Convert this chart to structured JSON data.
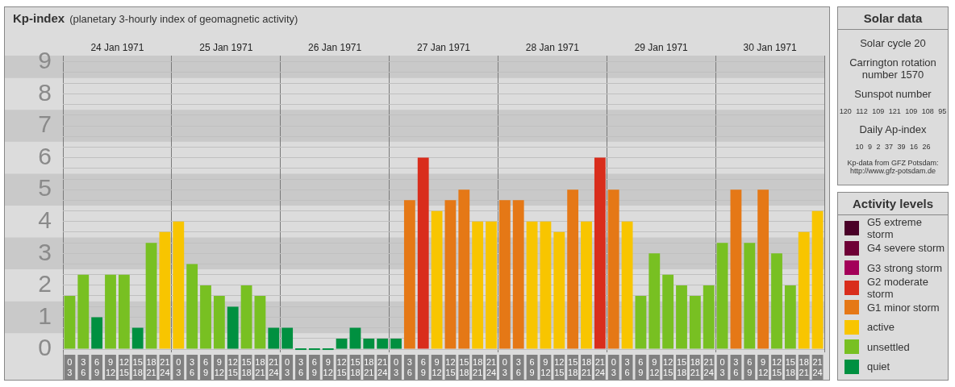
{
  "chart_data": {
    "type": "bar",
    "title": "Kp-index",
    "subtitle": "(planetary 3-hourly index of geomagnetic activity)",
    "categories": [
      "0 3",
      "3 6",
      "6 9",
      "9 12",
      "12 15",
      "15 18",
      "18 21",
      "21 24",
      "0 3",
      "3 6",
      "6 9",
      "9 12",
      "12 15",
      "15 18",
      "18 21",
      "21 24",
      "0 3",
      "3 6",
      "6 9",
      "9 12",
      "12 15",
      "15 18",
      "18 21",
      "21 24",
      "0 3",
      "3 6",
      "6 9",
      "9 12",
      "12 15",
      "15 18",
      "18 21",
      "21 24",
      "0 3",
      "3 6",
      "6 9",
      "9 12",
      "12 15",
      "15 18",
      "18 21",
      "21 24",
      "0 3",
      "3 6",
      "6 9",
      "9 12",
      "12 15",
      "15 18",
      "18 21",
      "21 24",
      "0 3",
      "3 6",
      "6 9",
      "9 12",
      "12 15",
      "15 18",
      "18 21",
      "21 24"
    ],
    "stacked": true,
    "series": [
      {
        "name": "G5 extreme storm",
        "color": "#4a0028",
        "values": [
          null,
          null,
          null,
          null,
          null,
          null,
          null,
          null,
          null,
          null,
          null,
          null,
          null,
          null,
          null,
          null,
          null,
          null,
          null,
          null,
          null,
          null,
          null,
          null,
          null,
          null,
          null,
          null,
          null,
          null,
          null,
          null,
          null,
          null,
          null,
          null,
          null,
          null,
          null,
          null,
          null,
          null,
          null,
          null,
          null,
          null,
          null,
          null,
          null,
          null,
          null,
          null,
          null,
          null,
          null,
          null
        ]
      },
      {
        "name": "G4 severe storm",
        "color": "#6e0036",
        "values": [
          null,
          null,
          null,
          null,
          null,
          null,
          null,
          null,
          null,
          null,
          null,
          null,
          null,
          null,
          null,
          null,
          null,
          null,
          null,
          null,
          null,
          null,
          null,
          null,
          null,
          null,
          null,
          null,
          null,
          null,
          null,
          null,
          null,
          null,
          null,
          null,
          null,
          null,
          null,
          null,
          null,
          null,
          null,
          null,
          null,
          null,
          null,
          null,
          null,
          null,
          null,
          null,
          null,
          null,
          null,
          null
        ]
      },
      {
        "name": "G3 strong storm",
        "color": "#a30059",
        "values": [
          null,
          null,
          null,
          null,
          null,
          null,
          null,
          null,
          null,
          null,
          null,
          null,
          null,
          null,
          null,
          null,
          null,
          null,
          null,
          null,
          null,
          null,
          null,
          null,
          null,
          null,
          null,
          null,
          null,
          null,
          null,
          null,
          null,
          null,
          null,
          null,
          null,
          null,
          null,
          null,
          null,
          null,
          null,
          null,
          null,
          null,
          null,
          null,
          null,
          null,
          null,
          null,
          null,
          null,
          null,
          null
        ]
      },
      {
        "name": "G2 moderate storm",
        "color": "#d92d1c",
        "values": [
          null,
          null,
          null,
          null,
          null,
          null,
          null,
          null,
          null,
          null,
          null,
          null,
          null,
          null,
          null,
          null,
          null,
          null,
          null,
          null,
          null,
          null,
          null,
          null,
          null,
          null,
          6,
          null,
          null,
          null,
          null,
          null,
          null,
          null,
          null,
          null,
          null,
          null,
          null,
          6,
          null,
          null,
          null,
          null,
          null,
          null,
          null,
          null,
          null,
          null,
          null,
          null,
          null,
          null,
          null,
          null
        ]
      },
      {
        "name": "G1 minor storm",
        "color": "#e57816",
        "values": [
          null,
          null,
          null,
          null,
          null,
          null,
          null,
          null,
          null,
          null,
          null,
          null,
          null,
          null,
          null,
          null,
          null,
          null,
          null,
          null,
          null,
          null,
          null,
          null,
          null,
          4.67,
          null,
          null,
          4.67,
          5,
          null,
          null,
          4.67,
          4.67,
          null,
          null,
          null,
          5,
          null,
          null,
          5,
          null,
          null,
          null,
          null,
          null,
          null,
          null,
          null,
          5,
          null,
          5,
          null,
          null,
          null,
          null
        ]
      },
      {
        "name": "active",
        "color": "#f8c500",
        "values": [
          null,
          null,
          null,
          null,
          null,
          null,
          null,
          3.67,
          4,
          null,
          null,
          null,
          null,
          null,
          null,
          null,
          null,
          null,
          null,
          null,
          null,
          null,
          null,
          null,
          null,
          null,
          null,
          4.33,
          null,
          null,
          4,
          4,
          null,
          null,
          4,
          4,
          3.67,
          null,
          4,
          null,
          null,
          4,
          null,
          null,
          null,
          null,
          null,
          null,
          null,
          null,
          null,
          null,
          null,
          null,
          3.67,
          4.33
        ]
      },
      {
        "name": "unsettled",
        "color": "#78c022",
        "values": [
          1.67,
          2.33,
          null,
          2.33,
          2.33,
          null,
          3.33,
          null,
          null,
          2.67,
          2,
          1.67,
          null,
          2,
          1.67,
          null,
          null,
          null,
          null,
          null,
          null,
          null,
          null,
          null,
          null,
          null,
          null,
          null,
          null,
          null,
          null,
          null,
          null,
          null,
          null,
          null,
          null,
          null,
          null,
          null,
          null,
          null,
          1.67,
          3,
          2.33,
          2,
          1.67,
          2,
          3.33,
          null,
          3.33,
          null,
          3,
          2,
          null,
          null
        ]
      },
      {
        "name": "quiet",
        "color": "#009040",
        "values": [
          null,
          null,
          1,
          null,
          null,
          0.67,
          null,
          null,
          null,
          null,
          null,
          null,
          1.33,
          null,
          null,
          0.67,
          0.67,
          0,
          0,
          0,
          0.33,
          0.67,
          0.33,
          0.33,
          0.33,
          null,
          null,
          null,
          null,
          null,
          null,
          null,
          null,
          null,
          null,
          null,
          null,
          null,
          null,
          null,
          null,
          null,
          null,
          null,
          null,
          null,
          null,
          null,
          null,
          null,
          null,
          null,
          null,
          null,
          null,
          null
        ]
      }
    ],
    "ylim": [
      -0.1,
      9.2
    ],
    "yticks": [
      0,
      {
        "value": 0.33,
        "label": null
      },
      {
        "value": 0.67,
        "label": null
      },
      1,
      {
        "value": 1.33,
        "label": null
      },
      {
        "value": 1.67,
        "label": null
      },
      2,
      {
        "value": 2.33,
        "label": null
      },
      {
        "value": 2.67,
        "label": null
      },
      3,
      {
        "value": 3.33,
        "label": null
      },
      {
        "value": 3.67,
        "label": null
      },
      4,
      {
        "value": 4.33,
        "label": null
      },
      {
        "value": 4.67,
        "label": null
      },
      5,
      {
        "value": 5.33,
        "label": null
      },
      {
        "value": 5.67,
        "label": null
      },
      6,
      {
        "value": 6.33,
        "label": null
      },
      {
        "value": 6.67,
        "label": null
      },
      7,
      {
        "value": 7.33,
        "label": null
      },
      {
        "value": 7.67,
        "label": null
      },
      8,
      {
        "value": 8.33,
        "label": null
      },
      {
        "value": 8.67,
        "label": null
      },
      9
    ],
    "x2lim": [
      "1971-01-24T00:00",
      "1971-01-31T00:00"
    ],
    "x2ticks": [
      {
        "value": "1971-01-24T00:00",
        "label": null
      },
      {
        "value": "1971-01-24T12:00",
        "label": "24 Jan 1971"
      },
      {
        "value": "1971-01-25T00:00",
        "label": null
      },
      {
        "value": "1971-01-25T12:00",
        "label": "25 Jan 1971"
      },
      {
        "value": "1971-01-26T00:00",
        "label": null
      },
      {
        "value": "1971-01-26T12:00",
        "label": "26 Jan 1971"
      },
      {
        "value": "1971-01-27T00:00",
        "label": null
      },
      {
        "value": "1971-01-27T12:00",
        "label": "27 Jan 1971"
      },
      {
        "value": "1971-01-28T00:00",
        "label": null
      },
      {
        "value": "1971-01-28T12:00",
        "label": "28 Jan 1971"
      },
      {
        "value": "1971-01-29T00:00",
        "label": null
      },
      {
        "value": "1971-01-29T12:00",
        "label": "29 Jan 1971"
      },
      {
        "value": "1971-01-30T00:00",
        "label": null
      },
      {
        "value": "1971-01-30T12:00",
        "label": "30 Jan 1971"
      },
      {
        "value": "1971-01-31T00:00",
        "label": null
      }
    ],
    "grid": true,
    "bands": [
      {
        "axis": "y",
        "from": 0.5,
        "to": 1.5,
        "color": "#c9c9c9"
      },
      {
        "axis": "y",
        "from": 2.5,
        "to": 3.5,
        "color": "#c9c9c9"
      },
      {
        "axis": "y",
        "from": 4.5,
        "to": 5.5,
        "color": "#c9c9c9"
      },
      {
        "axis": "y",
        "from": 6.5,
        "to": 7.5,
        "color": "#c9c9c9"
      },
      {
        "axis": "y",
        "from": 8.5,
        "to": 9.2,
        "color": "#c9c9c9"
      }
    ],
    "legend": "right",
    "legend_title": "Activity levels",
    "annotations": [
      "Solar data",
      "Solar cycle 20",
      "Carrington rotation number 1570",
      "Sunspot number",
      "120 112 109 121 109 108 95",
      "Daily Ap-index",
      "10 9 2 37 39 16 26",
      "Kp-data from GFZ Potsdam: http://www.gfz-potsdam.de"
    ]
  }
}
